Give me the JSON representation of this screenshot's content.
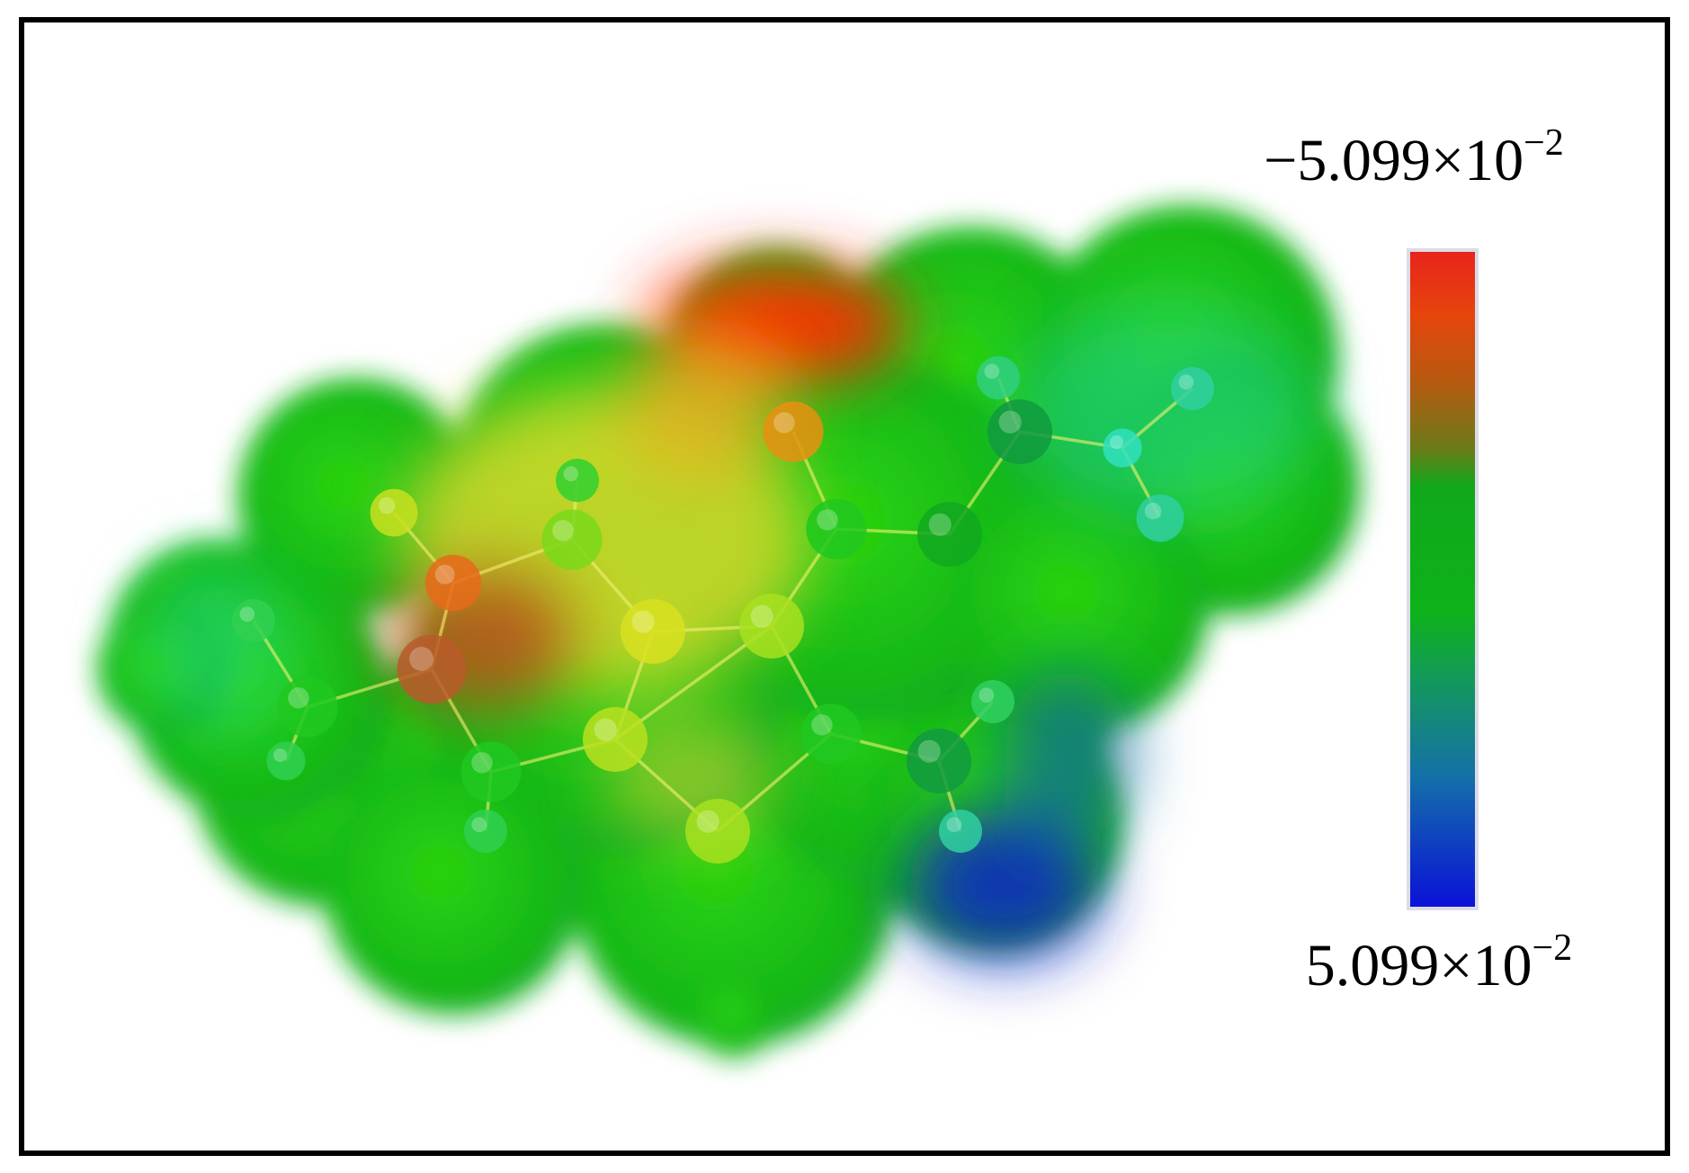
{
  "colorbar": {
    "top_label": {
      "mantissa": "−5.099×10",
      "exponent": "−2"
    },
    "bottom_label": {
      "mantissa": "5.099×10",
      "exponent": "−2"
    }
  }
}
